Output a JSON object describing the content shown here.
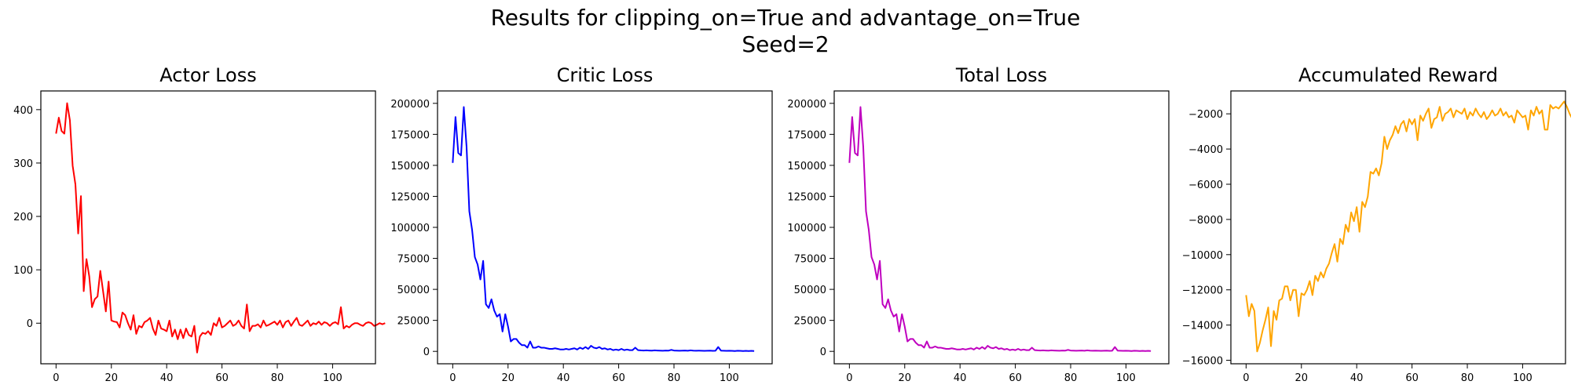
{
  "figure": {
    "suptitle_line1": "Results for clipping_on=True and advantage_on=True",
    "suptitle_line2": "Seed=2"
  },
  "chart_data": [
    {
      "type": "line",
      "title": "Actor Loss",
      "color": "#ff0000",
      "xlim": [
        -5.5,
        115.5
      ],
      "ylim": [
        -76,
        435
      ],
      "xticks": [
        0,
        20,
        40,
        60,
        80,
        100
      ],
      "yticks": [
        0,
        100,
        200,
        300,
        400
      ],
      "ytick_labels": [
        "0",
        "100",
        "200",
        "300",
        "400"
      ],
      "series": [
        {
          "values": [
            355,
            385,
            360,
            355,
            412,
            380,
            295,
            260,
            168,
            238,
            60,
            120,
            88,
            30,
            45,
            50,
            98,
            60,
            22,
            78,
            5,
            3,
            2,
            -8,
            20,
            15,
            0,
            -12,
            15,
            -20,
            -5,
            -8,
            2,
            5,
            10,
            -10,
            -22,
            5,
            -10,
            -12,
            -15,
            5,
            -25,
            -12,
            -30,
            -12,
            -28,
            -10,
            -22,
            -25,
            -5,
            -55,
            -25,
            -18,
            -20,
            -15,
            -22,
            0,
            -5,
            10,
            -8,
            -5,
            0,
            5,
            -5,
            -2,
            5,
            -5,
            -10,
            35,
            -15,
            -5,
            -5,
            -2,
            -8,
            5,
            -5,
            -3,
            0,
            3,
            -3,
            5,
            -8,
            2,
            5,
            -5,
            3,
            10,
            -3,
            -5,
            0,
            5,
            -5,
            0,
            -2,
            3,
            -3,
            2,
            0,
            -5,
            0,
            2,
            -2,
            30,
            -10,
            -5,
            -8,
            -3,
            0,
            0,
            -3,
            -5,
            0,
            2,
            0,
            -5,
            -3,
            0,
            -2,
            0
          ],
          "x_start": 0
        }
      ]
    },
    {
      "type": "line",
      "title": "Critic Loss",
      "color": "#0000ff",
      "xlim": [
        -5.5,
        115.5
      ],
      "ylim": [
        -10000,
        210000
      ],
      "xticks": [
        0,
        20,
        40,
        60,
        80,
        100
      ],
      "yticks": [
        0,
        25000,
        50000,
        75000,
        100000,
        125000,
        150000,
        175000,
        200000
      ],
      "ytick_labels": [
        "0",
        "25000",
        "50000",
        "75000",
        "100000",
        "125000",
        "150000",
        "175000",
        "200000"
      ],
      "series": [
        {
          "values": [
            152000,
            189000,
            160000,
            158000,
            197000,
            165000,
            113000,
            98000,
            76000,
            70000,
            58000,
            73000,
            38000,
            35000,
            42000,
            33000,
            28000,
            30000,
            16000,
            30000,
            20000,
            8000,
            10000,
            10000,
            7000,
            5000,
            5000,
            3000,
            8000,
            3000,
            3000,
            4000,
            3000,
            3000,
            2500,
            2000,
            2000,
            2500,
            2000,
            1500,
            1500,
            2000,
            1500,
            2000,
            2500,
            1500,
            3000,
            2000,
            3500,
            2000,
            4500,
            3000,
            2500,
            3500,
            2000,
            2500,
            1500,
            2000,
            1000,
            1500,
            1000,
            2000,
            1000,
            1500,
            1000,
            1000,
            3000,
            1000,
            800,
            700,
            800,
            700,
            600,
            800,
            700,
            600,
            500,
            700,
            600,
            1200,
            700,
            600,
            500,
            600,
            700,
            500,
            800,
            600,
            500,
            600,
            500,
            400,
            500,
            600,
            400,
            500,
            3500,
            600,
            500,
            400,
            500,
            400,
            300,
            500,
            400,
            300,
            400,
            300,
            400,
            300
          ],
          "x_start": 0
        }
      ]
    },
    {
      "type": "line",
      "title": "Total Loss",
      "color": "#bf00bf",
      "xlim": [
        -5.5,
        115.5
      ],
      "ylim": [
        -10000,
        210000
      ],
      "xticks": [
        0,
        20,
        40,
        60,
        80,
        100
      ],
      "yticks": [
        0,
        25000,
        50000,
        75000,
        100000,
        125000,
        150000,
        175000,
        200000
      ],
      "ytick_labels": [
        "0",
        "25000",
        "50000",
        "75000",
        "100000",
        "125000",
        "150000",
        "175000",
        "200000"
      ],
      "series": [
        {
          "values": [
            152000,
            189000,
            160000,
            158000,
            197000,
            165000,
            113000,
            98000,
            76000,
            70000,
            58000,
            73000,
            38000,
            35000,
            42000,
            33000,
            28000,
            30000,
            16000,
            30000,
            20000,
            8000,
            10000,
            10000,
            7000,
            5000,
            5000,
            3000,
            8000,
            3000,
            3000,
            4000,
            3000,
            3000,
            2500,
            2000,
            2000,
            2500,
            2000,
            1500,
            1500,
            2000,
            1500,
            2000,
            2500,
            1500,
            3000,
            2000,
            3500,
            2000,
            4500,
            3000,
            2500,
            3500,
            2000,
            2500,
            1500,
            2000,
            1000,
            1500,
            1000,
            2000,
            1000,
            1500,
            1000,
            1000,
            3000,
            1000,
            800,
            700,
            800,
            700,
            600,
            800,
            700,
            600,
            500,
            700,
            600,
            1200,
            700,
            600,
            500,
            600,
            700,
            500,
            800,
            600,
            500,
            600,
            500,
            400,
            500,
            600,
            400,
            500,
            3500,
            600,
            500,
            400,
            500,
            400,
            300,
            500,
            400,
            300,
            400,
            300,
            400,
            300
          ],
          "x_start": 0
        }
      ]
    },
    {
      "type": "line",
      "title": "Accumulated Reward",
      "color": "#ffa500",
      "xlim": [
        -5.5,
        115.5
      ],
      "ylim": [
        -16200,
        -700
      ],
      "xticks": [
        0,
        20,
        40,
        60,
        80,
        100
      ],
      "yticks": [
        -16000,
        -14000,
        -12000,
        -10000,
        -8000,
        -6000,
        -4000,
        -2000
      ],
      "ytick_labels": [
        "−16000",
        "−14000",
        "−12000",
        "−10000",
        "−8000",
        "−6000",
        "−4000",
        "−2000"
      ],
      "series": [
        {
          "values": [
            -12300,
            -13500,
            -12800,
            -13200,
            -15500,
            -15000,
            -14300,
            -13700,
            -13000,
            -15200,
            -13200,
            -13700,
            -12600,
            -12500,
            -11800,
            -11800,
            -12600,
            -12000,
            -12000,
            -13500,
            -12200,
            -12300,
            -12000,
            -11500,
            -12300,
            -11200,
            -11500,
            -11000,
            -11300,
            -10800,
            -10500,
            -9900,
            -9400,
            -10400,
            -9100,
            -9400,
            -8300,
            -8700,
            -7600,
            -8100,
            -7300,
            -8700,
            -7000,
            -7300,
            -6700,
            -5300,
            -5400,
            -5100,
            -5500,
            -4800,
            -3300,
            -4000,
            -3500,
            -3200,
            -2700,
            -3100,
            -2600,
            -2400,
            -3000,
            -2300,
            -2600,
            -2300,
            -3500,
            -2100,
            -2400,
            -2000,
            -1700,
            -2800,
            -2300,
            -2200,
            -1600,
            -2400,
            -2000,
            -1900,
            -1700,
            -2200,
            -1800,
            -1900,
            -2000,
            -1700,
            -2300,
            -1900,
            -2100,
            -1700,
            -2000,
            -2200,
            -1900,
            -2300,
            -2100,
            -1800,
            -2100,
            -2000,
            -1700,
            -2100,
            -1900,
            -2200,
            -2100,
            -2500,
            -1800,
            -2000,
            -2200,
            -2100,
            -2900,
            -1800,
            -2100,
            -1600,
            -2000,
            -1800,
            -2900,
            -2900,
            -1500,
            -1700,
            -1600,
            -1700,
            -1500,
            -1300,
            -1600,
            -2000,
            -2300,
            -2000
          ]
        }
      ]
    }
  ]
}
